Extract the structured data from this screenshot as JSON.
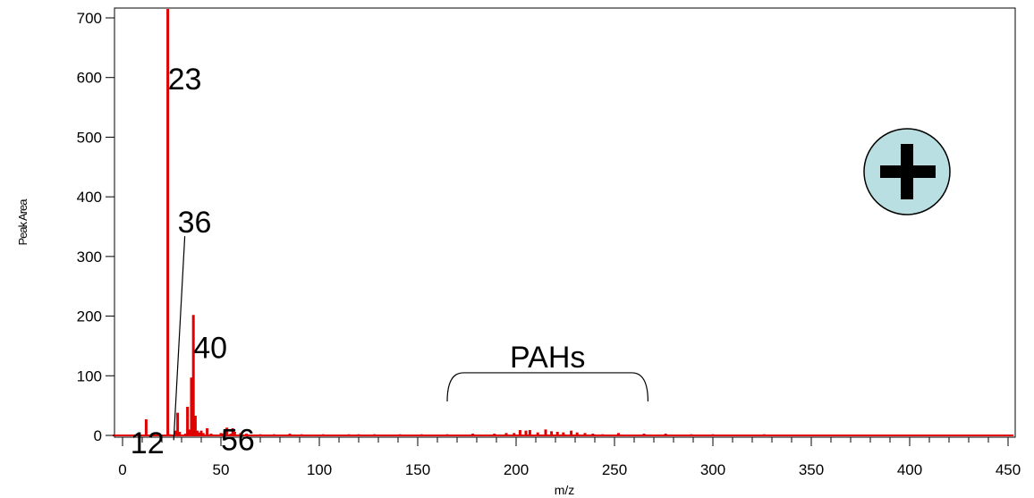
{
  "chart_data": {
    "type": "bar",
    "title": "",
    "xlabel": "m/z",
    "ylabel": "Peak Area",
    "xlim": [
      -5,
      450
    ],
    "ylim": [
      0,
      715
    ],
    "x_ticks": [
      0,
      50,
      100,
      150,
      200,
      250,
      300,
      350,
      400,
      450
    ],
    "y_ticks": [
      0,
      100,
      200,
      300,
      400,
      500,
      600,
      700
    ],
    "grid": false,
    "polarity": "+",
    "series": [
      {
        "color": "#e00000",
        "x": [
          1,
          6,
          12,
          18,
          23,
          24,
          27,
          28,
          29,
          32,
          33,
          34,
          35,
          36,
          37,
          38,
          39,
          40,
          41,
          43,
          45,
          50,
          51,
          53,
          55,
          56,
          57,
          60,
          63,
          70,
          77,
          85,
          91,
          102,
          115,
          120,
          128,
          141,
          152,
          165,
          178,
          189,
          195,
          199,
          202,
          205,
          207,
          211,
          215,
          218,
          221,
          224,
          228,
          231,
          235,
          239,
          244,
          252,
          265,
          276,
          289,
          300,
          313,
          326,
          339,
          350,
          365,
          380,
          395,
          410,
          425,
          440
        ],
        "values": [
          1,
          1,
          27,
          2,
          715,
          2,
          8,
          38,
          6,
          3,
          48,
          10,
          97,
          202,
          33,
          8,
          5,
          8,
          4,
          12,
          3,
          4,
          3,
          13,
          3,
          12,
          6,
          4,
          3,
          2,
          2,
          3,
          2,
          2,
          2,
          2,
          2,
          2,
          2,
          2,
          3,
          3,
          4,
          4,
          9,
          8,
          9,
          5,
          10,
          7,
          6,
          5,
          8,
          5,
          4,
          3,
          2,
          4,
          3,
          3,
          2,
          2,
          1,
          2,
          1,
          1,
          1,
          1,
          1,
          1,
          1,
          1
        ]
      }
    ],
    "annotations": [
      {
        "text": "23",
        "x": 23,
        "y": 580
      },
      {
        "text": "36",
        "x": 28,
        "y": 340,
        "leader_to": {
          "x": 26,
          "y": -8
        }
      },
      {
        "text": "40",
        "x": 36,
        "y": 130
      },
      {
        "text": "12",
        "x": 4,
        "y": -30
      },
      {
        "text": "56",
        "x": 50,
        "y": -25
      },
      {
        "text": "PAHs",
        "x": 213,
        "y": 110,
        "bracket": [
          165,
          267
        ]
      }
    ]
  }
}
